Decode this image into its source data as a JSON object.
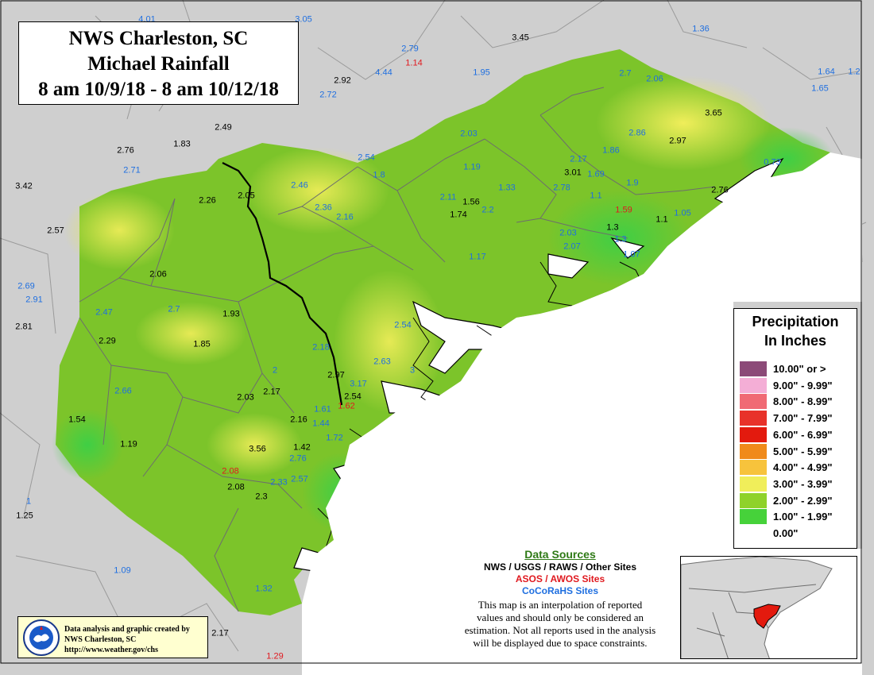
{
  "title": {
    "line1": "NWS Charleston, SC",
    "line2": "Michael Rainfall",
    "line3": "8 am 10/9/18 - 8 am 10/12/18"
  },
  "legend": {
    "title_line1": "Precipitation",
    "title_line2": "In Inches",
    "items": [
      {
        "label": "10.00\" or >",
        "color": "#8c4a78"
      },
      {
        "label": "9.00\" - 9.99\"",
        "color": "#f4aed6"
      },
      {
        "label": "8.00\" - 8.99\"",
        "color": "#f06a74"
      },
      {
        "label": "7.00\" - 7.99\"",
        "color": "#e8322a"
      },
      {
        "label": "6.00\" - 6.99\"",
        "color": "#e31a0e"
      },
      {
        "label": "5.00\" - 5.99\"",
        "color": "#f08a1a"
      },
      {
        "label": "4.00\" - 4.99\"",
        "color": "#f7c33c"
      },
      {
        "label": "3.00\" - 3.99\"",
        "color": "#f0ee5a"
      },
      {
        "label": "2.00\" - 2.99\"",
        "color": "#8fd22a"
      },
      {
        "label": "1.00\" - 1.99\"",
        "color": "#46d23a"
      },
      {
        "label": "0.00\"",
        "color": "#ffffff"
      }
    ]
  },
  "sources": {
    "title": "Data Sources",
    "nws": "NWS / USGS / RAWS / Other Sites",
    "asos": "ASOS / AWOS Sites",
    "cocorahs": "CoCoRaHS Sites",
    "disclaimer_1": "This map is an interpolation of reported",
    "disclaimer_2": "values and should only be considered an",
    "disclaimer_3": "estimation. Not all reports used in the analysis",
    "disclaimer_4": "will be displayed due to space constraints."
  },
  "credit": {
    "line1": "Data analysis and graphic created by",
    "line2": "NWS Charleston, SC",
    "line3": "http://www.weather.gov/chs",
    "logo_icon": "nws-logo-icon"
  },
  "colors": {
    "nws": "#000000",
    "asos": "#e0191f",
    "cocorahs": "#1f6fe0",
    "background": "#cfcfcf",
    "analysis_green": "#7cc42a"
  },
  "labels": [
    {
      "v": "4.01",
      "t": "coco"
    },
    {
      "v": "3.05",
      "t": "coco"
    },
    {
      "v": "3.45",
      "t": "nws"
    },
    {
      "v": "1.36",
      "t": "coco"
    },
    {
      "v": "2.79",
      "t": "coco"
    },
    {
      "v": "1.14",
      "t": "asos"
    },
    {
      "v": "4.44",
      "t": "coco"
    },
    {
      "v": "1.95",
      "t": "coco"
    },
    {
      "v": "2.92",
      "t": "nws"
    },
    {
      "v": "2.72",
      "t": "coco"
    },
    {
      "v": "2.7",
      "t": "coco"
    },
    {
      "v": "2.06",
      "t": "coco"
    },
    {
      "v": "1.64",
      "t": "coco"
    },
    {
      "v": "1.2",
      "t": "coco"
    },
    {
      "v": "1.65",
      "t": "coco"
    },
    {
      "v": "2.49",
      "t": "nws"
    },
    {
      "v": "3.65",
      "t": "nws"
    },
    {
      "v": "2.03",
      "t": "coco"
    },
    {
      "v": "2.86",
      "t": "coco"
    },
    {
      "v": "2.97",
      "t": "nws"
    },
    {
      "v": "1.83",
      "t": "nws"
    },
    {
      "v": "2.76",
      "t": "nws"
    },
    {
      "v": "2.71",
      "t": "coco"
    },
    {
      "v": "2.54",
      "t": "coco"
    },
    {
      "v": "2.17",
      "t": "coco"
    },
    {
      "v": "1.86",
      "t": "coco"
    },
    {
      "v": "0.73",
      "t": "coco"
    },
    {
      "v": "1.19",
      "t": "coco"
    },
    {
      "v": "1.8",
      "t": "coco"
    },
    {
      "v": "3.01",
      "t": "nws"
    },
    {
      "v": "1.69",
      "t": "coco"
    },
    {
      "v": "3.42",
      "t": "nws"
    },
    {
      "v": "2.46",
      "t": "coco"
    },
    {
      "v": "2.05",
      "t": "nws"
    },
    {
      "v": "2.26",
      "t": "nws"
    },
    {
      "v": "2.11",
      "t": "coco"
    },
    {
      "v": "1.56",
      "t": "nws"
    },
    {
      "v": "1.33",
      "t": "coco"
    },
    {
      "v": "2.78",
      "t": "coco"
    },
    {
      "v": "1.9",
      "t": "coco"
    },
    {
      "v": "2.76",
      "t": "nws"
    },
    {
      "v": "1.1",
      "t": "coco"
    },
    {
      "v": "2.36",
      "t": "coco"
    },
    {
      "v": "2.2",
      "t": "coco"
    },
    {
      "v": "1.59",
      "t": "asos"
    },
    {
      "v": "1.74",
      "t": "nws"
    },
    {
      "v": "2.16",
      "t": "coco"
    },
    {
      "v": "1.05",
      "t": "coco"
    },
    {
      "v": "1.1",
      "t": "nws"
    },
    {
      "v": "1.3",
      "t": "nws"
    },
    {
      "v": "2.57",
      "t": "nws"
    },
    {
      "v": "2.03",
      "t": "coco"
    },
    {
      "v": "1.3",
      "t": "coco"
    },
    {
      "v": "2.07",
      "t": "coco"
    },
    {
      "v": "1.07",
      "t": "coco"
    },
    {
      "v": "1.17",
      "t": "coco"
    },
    {
      "v": "2.06",
      "t": "nws"
    },
    {
      "v": "2.69",
      "t": "coco"
    },
    {
      "v": "2.91",
      "t": "coco"
    },
    {
      "v": "2.47",
      "t": "coco"
    },
    {
      "v": "2.7",
      "t": "coco"
    },
    {
      "v": "1.93",
      "t": "nws"
    },
    {
      "v": "2.81",
      "t": "nws"
    },
    {
      "v": "2.54",
      "t": "coco"
    },
    {
      "v": "2.29",
      "t": "nws"
    },
    {
      "v": "1.85",
      "t": "nws"
    },
    {
      "v": "2.18",
      "t": "coco"
    },
    {
      "v": "2.63",
      "t": "coco"
    },
    {
      "v": "2",
      "t": "coco"
    },
    {
      "v": "3",
      "t": "coco"
    },
    {
      "v": "2.97",
      "t": "nws"
    },
    {
      "v": "3.17",
      "t": "coco"
    },
    {
      "v": "2.66",
      "t": "coco"
    },
    {
      "v": "2.17",
      "t": "nws"
    },
    {
      "v": "2.03",
      "t": "nws"
    },
    {
      "v": "2.54",
      "t": "nws"
    },
    {
      "v": "1.61",
      "t": "coco"
    },
    {
      "v": "1.62",
      "t": "asos"
    },
    {
      "v": "1.54",
      "t": "nws"
    },
    {
      "v": "2.16",
      "t": "nws"
    },
    {
      "v": "1.44",
      "t": "coco"
    },
    {
      "v": "1.19",
      "t": "nws"
    },
    {
      "v": "1.72",
      "t": "coco"
    },
    {
      "v": "1.42",
      "t": "nws"
    },
    {
      "v": "3.56",
      "t": "nws"
    },
    {
      "v": "2.76",
      "t": "coco"
    },
    {
      "v": "2.08",
      "t": "asos"
    },
    {
      "v": "2.57",
      "t": "coco"
    },
    {
      "v": "2.33",
      "t": "coco"
    },
    {
      "v": "2.08",
      "t": "nws"
    },
    {
      "v": "2.3",
      "t": "nws"
    },
    {
      "v": "1",
      "t": "coco"
    },
    {
      "v": "1.25",
      "t": "nws"
    },
    {
      "v": "1.09",
      "t": "coco"
    },
    {
      "v": "1.32",
      "t": "coco"
    },
    {
      "v": "2.17",
      "t": "nws"
    },
    {
      "v": "1.29",
      "t": "asos"
    }
  ]
}
